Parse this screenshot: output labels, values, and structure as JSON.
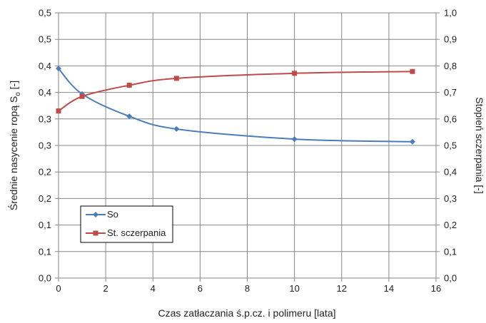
{
  "chart_data": {
    "type": "line",
    "x": [
      0,
      1,
      3,
      5,
      10,
      15
    ],
    "xlabel": "Czas zatłaczania ś.p.cz. i polimeru [lata]",
    "xlim": [
      0,
      16
    ],
    "xticks": [
      "0",
      "2",
      "4",
      "6",
      "8",
      "10",
      "12",
      "14",
      "16"
    ],
    "ylabel_left": "Średnie nasycenie ropą S",
    "ylabel_left_sub": "o",
    "ylabel_left_unit": " [-]",
    "ylim_left": [
      0,
      0.5
    ],
    "yticks_left": [
      "0,0",
      "0,1",
      "0,1",
      "0,2",
      "0,2",
      "0,3",
      "0,3",
      "0,4",
      "0,4",
      "0,5",
      "0,5"
    ],
    "ylabel_right": "Stopień sczerpania [-]",
    "ylim_right": [
      0,
      1.0
    ],
    "yticks_right": [
      "0,0",
      "0,1",
      "0,2",
      "0,3",
      "0,4",
      "0,5",
      "0,6",
      "0,7",
      "0,8",
      "0,9",
      "1,0"
    ],
    "grid": true,
    "legend_position": "lower-left",
    "series": [
      {
        "name": "So",
        "axis": "left",
        "color": "#4a7ebb",
        "marker": "diamond",
        "values": [
          0.395,
          0.347,
          0.305,
          0.281,
          0.262,
          0.257
        ]
      },
      {
        "name": "St. sczerpania",
        "axis": "right",
        "color": "#be4b48",
        "marker": "square",
        "values": [
          0.63,
          0.685,
          0.727,
          0.753,
          0.772,
          0.779
        ]
      }
    ]
  }
}
